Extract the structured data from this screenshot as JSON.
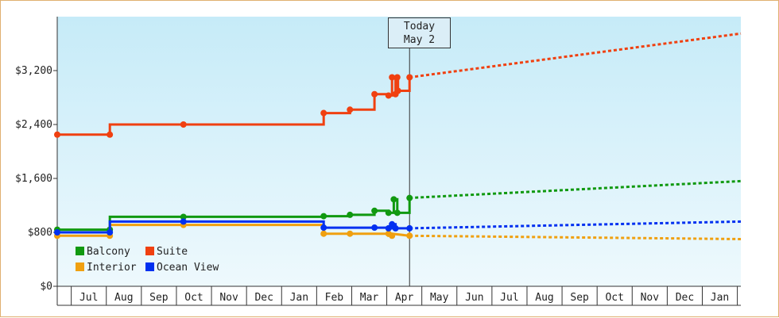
{
  "chart_data": {
    "type": "line",
    "title": "",
    "xlabel": "",
    "ylabel": "",
    "x_tick_labels": [
      "Jul",
      "Aug",
      "Sep",
      "Oct",
      "Nov",
      "Dec",
      "Jan",
      "Feb",
      "Mar",
      "Apr",
      "May",
      "Jun",
      "Jul",
      "Aug",
      "Sep",
      "Oct",
      "Nov",
      "Dec",
      "Jan"
    ],
    "y_tick_labels": [
      "$0",
      "$800",
      "$1,600",
      "$2,400",
      "$3,200"
    ],
    "ylim": [
      0,
      3200
    ],
    "y_ticks": [
      0,
      800,
      1600,
      2400,
      3200
    ],
    "x_range_months": [
      0,
      19.5
    ],
    "grid": "vertical month dividers",
    "legend_position": "bottom-left",
    "today_marker": {
      "line1": "Today",
      "line2": "May 2",
      "x": 10.05
    },
    "series": [
      {
        "name": "Balcony",
        "color": "#109910",
        "historical": [
          [
            0,
            840
          ],
          [
            1.5,
            840
          ],
          [
            1.5,
            1030
          ],
          [
            3.6,
            1030
          ],
          [
            7.6,
            1030
          ],
          [
            7.6,
            1040
          ],
          [
            8.35,
            1040
          ],
          [
            8.35,
            1060
          ],
          [
            9.05,
            1060
          ],
          [
            9.05,
            1120
          ],
          [
            9.45,
            1120
          ],
          [
            9.45,
            1090
          ],
          [
            9.6,
            1090
          ],
          [
            9.6,
            1290
          ],
          [
            9.7,
            1290
          ],
          [
            9.7,
            1090
          ],
          [
            10.05,
            1090
          ],
          [
            10.05,
            1310
          ]
        ],
        "projected": [
          [
            10.05,
            1310
          ],
          [
            19.5,
            1560
          ]
        ]
      },
      {
        "name": "Suite",
        "color": "#f04010",
        "historical": [
          [
            0,
            2250
          ],
          [
            1.5,
            2250
          ],
          [
            1.5,
            2400
          ],
          [
            3.6,
            2400
          ],
          [
            7.6,
            2400
          ],
          [
            7.6,
            2570
          ],
          [
            8.35,
            2570
          ],
          [
            8.35,
            2620
          ],
          [
            9.05,
            2620
          ],
          [
            9.05,
            2850
          ],
          [
            9.45,
            2850
          ],
          [
            9.45,
            2830
          ],
          [
            9.55,
            2830
          ],
          [
            9.55,
            3100
          ],
          [
            9.65,
            3100
          ],
          [
            9.65,
            2850
          ],
          [
            9.7,
            2850
          ],
          [
            9.7,
            3100
          ],
          [
            9.72,
            3100
          ],
          [
            9.72,
            2900
          ],
          [
            10.05,
            2900
          ],
          [
            10.05,
            3100
          ]
        ],
        "projected": [
          [
            10.05,
            3100
          ],
          [
            19.5,
            3750
          ]
        ]
      },
      {
        "name": "Interior",
        "color": "#f0a010",
        "historical": [
          [
            0,
            750
          ],
          [
            1.5,
            750
          ],
          [
            1.5,
            910
          ],
          [
            3.6,
            910
          ],
          [
            7.6,
            910
          ],
          [
            7.6,
            780
          ],
          [
            8.35,
            780
          ],
          [
            8.35,
            780
          ],
          [
            9.05,
            780
          ],
          [
            9.45,
            780
          ],
          [
            9.45,
            750
          ],
          [
            9.55,
            750
          ],
          [
            9.55,
            780
          ],
          [
            10.05,
            750
          ]
        ],
        "projected": [
          [
            10.05,
            750
          ],
          [
            19.5,
            700
          ]
        ]
      },
      {
        "name": "Ocean View",
        "color": "#0030f0",
        "historical": [
          [
            0,
            800
          ],
          [
            1.5,
            800
          ],
          [
            1.5,
            960
          ],
          [
            3.6,
            960
          ],
          [
            7.6,
            960
          ],
          [
            7.6,
            870
          ],
          [
            8.35,
            870
          ],
          [
            9.05,
            870
          ],
          [
            9.45,
            870
          ],
          [
            9.45,
            860
          ],
          [
            9.55,
            860
          ],
          [
            9.55,
            920
          ],
          [
            9.65,
            920
          ],
          [
            9.65,
            860
          ],
          [
            10.05,
            860
          ]
        ],
        "projected": [
          [
            10.05,
            860
          ],
          [
            19.5,
            960
          ]
        ]
      }
    ]
  }
}
